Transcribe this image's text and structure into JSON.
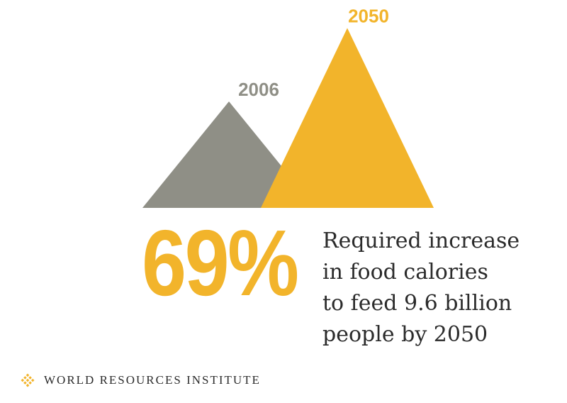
{
  "chart_data": {
    "type": "area",
    "categories": [
      "2006",
      "2050"
    ],
    "values": [
      100,
      169
    ],
    "colors": [
      "#8f8f86",
      "#f2b42b"
    ]
  },
  "stat": {
    "value": "69%",
    "caption_lines": [
      "Required increase",
      "in food calories",
      "to feed 9.6 billion",
      "people by 2050"
    ]
  },
  "footer": {
    "organization": "WORLD RESOURCES INSTITUTE",
    "logo_icon": "wri-logo-icon",
    "logo_color": "#f2b42b"
  }
}
